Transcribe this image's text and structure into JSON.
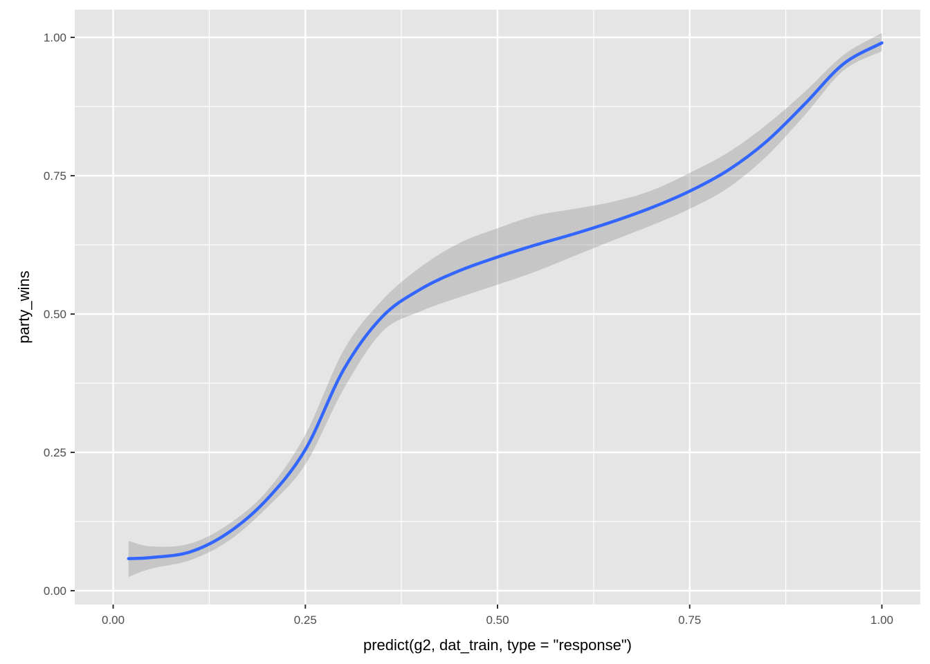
{
  "chart_data": {
    "type": "line",
    "title": "",
    "xlabel": "predict(g2, dat_train, type = \"response\")",
    "ylabel": "party_wins",
    "xlim": [
      -0.05,
      1.05
    ],
    "ylim": [
      -0.025,
      1.05
    ],
    "x_ticks": [
      0.0,
      0.25,
      0.5,
      0.75,
      1.0
    ],
    "x_tick_labels": [
      "0.00",
      "0.25",
      "0.50",
      "0.75",
      "1.00"
    ],
    "y_ticks": [
      0.0,
      0.25,
      0.5,
      0.75,
      1.0
    ],
    "y_tick_labels": [
      "0.00",
      "0.25",
      "0.50",
      "0.75",
      "1.00"
    ],
    "grid": true,
    "smooth": {
      "x": [
        0.02,
        0.05,
        0.1,
        0.15,
        0.2,
        0.25,
        0.3,
        0.35,
        0.4,
        0.45,
        0.5,
        0.55,
        0.6,
        0.65,
        0.7,
        0.75,
        0.8,
        0.85,
        0.9,
        0.95,
        1.0
      ],
      "y": [
        0.058,
        0.06,
        0.07,
        0.105,
        0.165,
        0.255,
        0.4,
        0.495,
        0.545,
        0.578,
        0.603,
        0.625,
        0.645,
        0.667,
        0.692,
        0.722,
        0.76,
        0.812,
        0.88,
        0.952,
        0.99
      ],
      "lower": [
        0.025,
        0.04,
        0.055,
        0.09,
        0.15,
        0.228,
        0.365,
        0.468,
        0.505,
        0.53,
        0.553,
        0.577,
        0.605,
        0.633,
        0.66,
        0.69,
        0.728,
        0.785,
        0.86,
        0.94,
        0.975
      ],
      "upper": [
        0.09,
        0.08,
        0.085,
        0.12,
        0.18,
        0.282,
        0.435,
        0.525,
        0.585,
        0.628,
        0.655,
        0.678,
        0.69,
        0.703,
        0.723,
        0.755,
        0.792,
        0.842,
        0.902,
        0.968,
        1.008
      ]
    },
    "colors": {
      "panel": "#e5e5e5",
      "grid": "#ffffff",
      "line": "#3366ff",
      "ribbon": "#999999"
    }
  }
}
